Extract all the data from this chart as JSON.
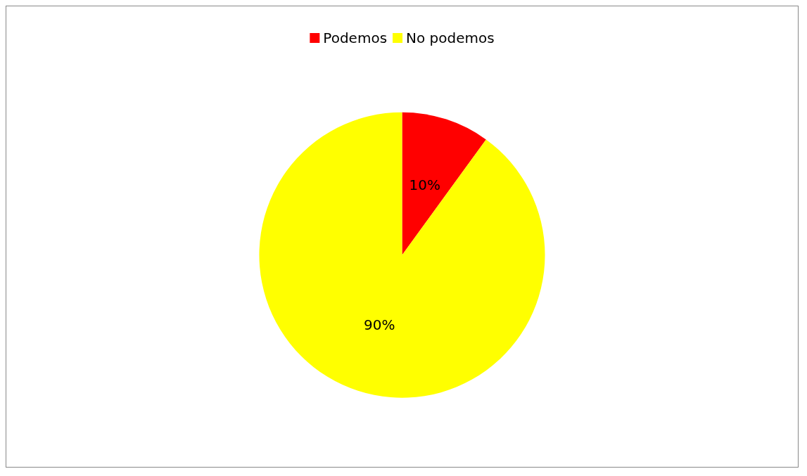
{
  "chart_data": {
    "type": "pie",
    "categories": [
      "Podemos",
      "No podemos"
    ],
    "values": [
      10,
      90
    ],
    "value_labels": [
      "10%",
      "90%"
    ],
    "colors": [
      "#ff0000",
      "#ffff00"
    ],
    "legend": "top"
  }
}
